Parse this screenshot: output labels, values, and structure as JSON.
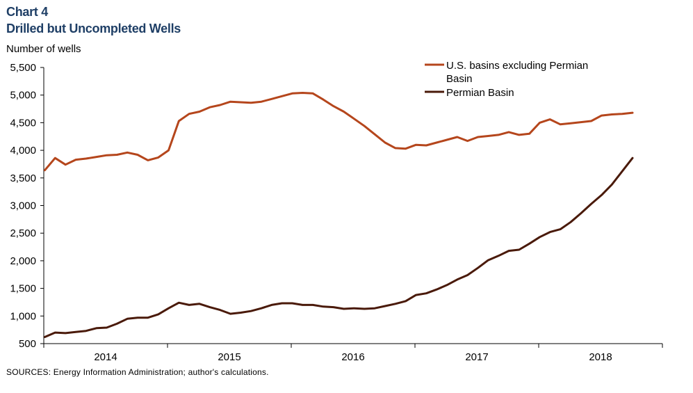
{
  "header": {
    "chart_number": "Chart 4",
    "title": "Drilled but Uncompleted Wells"
  },
  "source_note": "SOURCES: Energy Information  Administration; author's calculations.",
  "colors": {
    "us_excl_permian": "#b5461c",
    "permian": "#4a1a0a",
    "axis": "#000000",
    "title": "#1f3f66"
  },
  "chart_data": {
    "type": "line",
    "title": "Drilled but Uncompleted Wells",
    "xlabel": "",
    "ylabel": "Number of wells",
    "ylim": [
      500,
      5500
    ],
    "yticks": [
      500,
      1000,
      1500,
      2000,
      2500,
      3000,
      3500,
      4000,
      4500,
      5000,
      5500
    ],
    "ytick_labels": [
      "500",
      "1,000",
      "1,500",
      "2,000",
      "2,500",
      "3,000",
      "3,500",
      "4,000",
      "4,500",
      "5,000",
      "5,500"
    ],
    "year_labels": [
      "2014",
      "2015",
      "2016",
      "2017",
      "2018"
    ],
    "x_start": "Dec 2013",
    "legend": [
      "U.S. basins excluding Permian Basin",
      "Permian Basin"
    ],
    "legend_position": "top-right",
    "series": [
      {
        "name": "U.S. basins excluding Permian Basin",
        "legend_lines": [
          "U.S. basins excluding Permian",
          "Basin"
        ],
        "color_key": "us_excl_permian",
        "values": [
          3640,
          3860,
          3740,
          3830,
          3850,
          3880,
          3910,
          3920,
          3960,
          3920,
          3820,
          3870,
          4000,
          4530,
          4660,
          4700,
          4780,
          4820,
          4880,
          4870,
          4860,
          4880,
          4930,
          4980,
          5030,
          5040,
          5030,
          4920,
          4800,
          4700,
          4570,
          4440,
          4290,
          4140,
          4040,
          4030,
          4100,
          4090,
          4140,
          4190,
          4240,
          4170,
          4240,
          4260,
          4280,
          4330,
          4280,
          4300,
          4500,
          4560,
          4470,
          4490,
          4510,
          4530,
          4630,
          4650,
          4660,
          4680
        ]
      },
      {
        "name": "Permian Basin",
        "legend_lines": [
          "Permian Basin"
        ],
        "color_key": "permian",
        "values": [
          620,
          700,
          690,
          710,
          730,
          780,
          790,
          860,
          950,
          970,
          970,
          1030,
          1140,
          1240,
          1200,
          1220,
          1160,
          1110,
          1040,
          1060,
          1090,
          1140,
          1200,
          1230,
          1230,
          1200,
          1200,
          1170,
          1160,
          1130,
          1140,
          1130,
          1140,
          1180,
          1220,
          1270,
          1380,
          1410,
          1480,
          1560,
          1660,
          1740,
          1870,
          2010,
          2090,
          2180,
          2200,
          2310,
          2430,
          2520,
          2570,
          2700,
          2860,
          3030,
          3190,
          3380,
          3620,
          3860
        ]
      }
    ]
  }
}
